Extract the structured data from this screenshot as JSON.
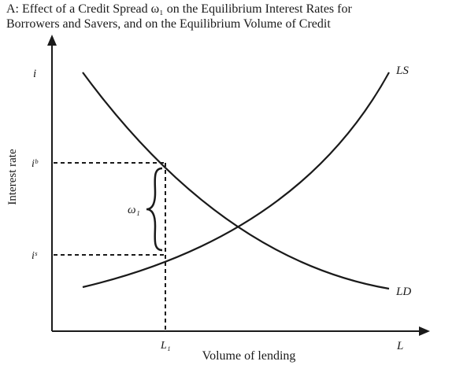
{
  "title": {
    "line1": "A: Effect of a Credit Spread ω₁ on the Equilibrium Interest Rates for",
    "line2": "Borrowers and Savers, and on the Equilibrium Volume of Credit"
  },
  "axes": {
    "y_axis_symbol": "i",
    "y_axis_label": "Interest rate",
    "x_axis_symbol": "L",
    "x_axis_label": "Volume of lending"
  },
  "curves": {
    "supply_label": "LS",
    "demand_label": "LD"
  },
  "markers": {
    "borrower_rate": "iᵇ",
    "saver_rate": "iˢ",
    "quantity": "L₁",
    "spread": "ω₁"
  }
}
